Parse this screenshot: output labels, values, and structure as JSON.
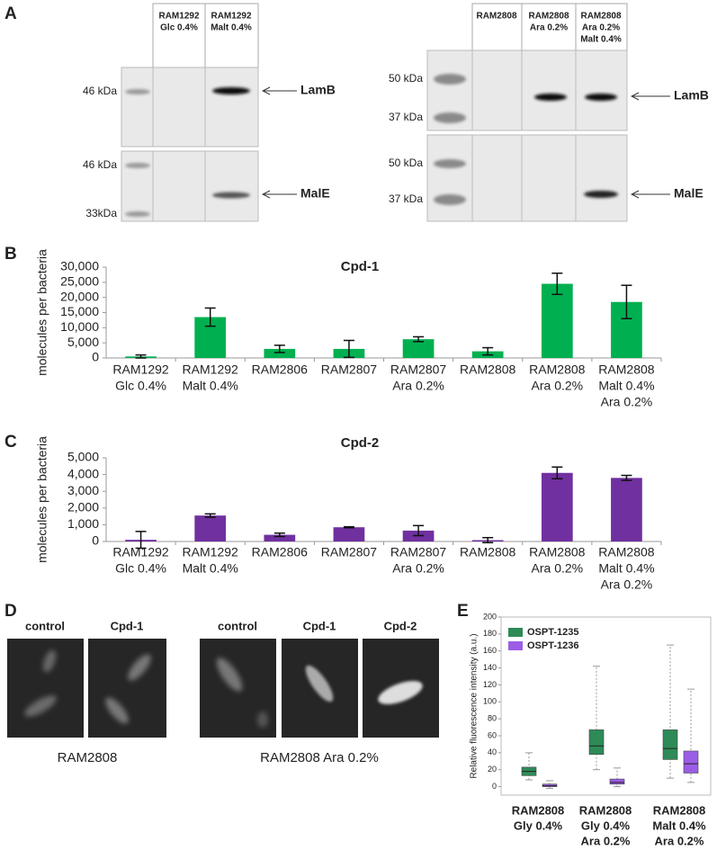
{
  "panel_labels": [
    "A",
    "B",
    "C",
    "D",
    "E"
  ],
  "blot_left": {
    "lanes": [
      [
        "RAM1292",
        "Glc 0.4%"
      ],
      [
        "RAM1292",
        "Malt 0.4%"
      ]
    ],
    "markers": [
      "46 kDa",
      "46 kDa",
      "33kDa"
    ],
    "arrows": [
      "LamB",
      "MalE"
    ]
  },
  "blot_right": {
    "lanes": [
      [
        "RAM2808"
      ],
      [
        "RAM2808",
        "Ara 0.2%"
      ],
      [
        "RAM2808",
        "Ara 0.2%",
        "Malt 0.4%"
      ]
    ],
    "markers": [
      "50 kDa",
      "37 kDa",
      "50 kDa",
      "37 kDa"
    ],
    "arrows": [
      "LamB",
      "MalE"
    ]
  },
  "images": {
    "groups": [
      {
        "caption": "RAM2808",
        "labels": [
          "control",
          "Cpd-1"
        ]
      },
      {
        "caption": "RAM2808 Ara 0.2%",
        "labels": [
          "control",
          "Cpd-1",
          "Cpd-2"
        ]
      }
    ]
  },
  "chart_data": [
    {
      "type": "bar",
      "title": "Cpd-1",
      "y_label": "molecules per bacteria",
      "color": "#00b050",
      "categories": [
        [
          "RAM1292",
          "Glc 0.4%"
        ],
        [
          "RAM1292",
          "Malt 0.4%"
        ],
        [
          "RAM2806"
        ],
        [
          "RAM2807"
        ],
        [
          "RAM2807",
          "Ara 0.2%"
        ],
        [
          "RAM2808"
        ],
        [
          "RAM2808",
          "Ara 0.2%"
        ],
        [
          "RAM2808",
          "Malt 0.4%",
          "Ara 0.2%"
        ]
      ],
      "values": [
        500,
        13500,
        3000,
        3000,
        6200,
        2200,
        24500,
        18500
      ],
      "errors": [
        500,
        3000,
        1200,
        2800,
        800,
        1200,
        3500,
        5500
      ],
      "ylim": [
        0,
        30000
      ],
      "yticks": [
        0,
        {
          "value": 5000,
          "label": "5,000"
        },
        {
          "value": 10000,
          "label": "10,000"
        },
        {
          "value": 15000,
          "label": "15,000"
        },
        {
          "value": 20000,
          "label": "20,000"
        },
        {
          "value": 25000,
          "label": "25,000"
        },
        {
          "value": 30000,
          "label": "30,000"
        }
      ]
    },
    {
      "type": "bar",
      "title": "Cpd-2",
      "y_label": "molecules per bacteria",
      "color": "#7030a0",
      "categories": [
        [
          "RAM1292",
          "Glc 0.4%"
        ],
        [
          "RAM1292",
          "Malt 0.4%"
        ],
        [
          "RAM2806"
        ],
        [
          "RAM2807"
        ],
        [
          "RAM2807",
          "Ara 0.2%"
        ],
        [
          "RAM2808"
        ],
        [
          "RAM2808",
          "Ara 0.2%"
        ],
        [
          "RAM2808",
          "Malt 0.4%",
          "Ara 0.2%"
        ]
      ],
      "values": [
        100,
        1550,
        400,
        850,
        650,
        80,
        4100,
        3800
      ],
      "errors": [
        500,
        100,
        100,
        30,
        300,
        150,
        350,
        150
      ],
      "ylim": [
        0,
        5000
      ],
      "yticks": [
        0,
        {
          "value": 1000,
          "label": "1,000"
        },
        {
          "value": 2000,
          "label": "2,000"
        },
        {
          "value": 3000,
          "label": "3,000"
        },
        {
          "value": 4000,
          "label": "4,000"
        },
        {
          "value": 5000,
          "label": "5,000"
        }
      ]
    },
    {
      "type": "box",
      "y_label": "Relative fluorescence intensity (a.u.)",
      "legend": "upper-left",
      "categories": [
        [
          "RAM2808",
          "Gly 0.4%"
        ],
        [
          "RAM2808",
          "Gly 0.4%",
          "Ara 0.2%"
        ],
        [
          "RAM2808",
          "Malt 0.4%",
          "Ara 0.2%"
        ]
      ],
      "series": [
        {
          "name": "OSPT-1235",
          "color": "#2e8b57",
          "values": [
            {
              "min": 8,
              "q1": 13,
              "median": 18,
              "q3": 23,
              "max": 40
            },
            {
              "min": 20,
              "q1": 38,
              "median": 48,
              "q3": 67,
              "max": 142
            },
            {
              "min": 10,
              "q1": 32,
              "median": 45,
              "q3": 67,
              "max": 167
            }
          ]
        },
        {
          "name": "OSPT-1236",
          "color": "#9b5de5",
          "values": [
            {
              "min": -2,
              "q1": 0,
              "median": 1,
              "q3": 3,
              "max": 7
            },
            {
              "min": 0,
              "q1": 3,
              "median": 5,
              "q3": 9,
              "max": 22
            },
            {
              "min": 5,
              "q1": 16,
              "median": 27,
              "q3": 42,
              "max": 115
            }
          ]
        }
      ],
      "ylim": [
        -10,
        200
      ],
      "yticks": [
        0,
        20,
        40,
        60,
        80,
        100,
        120,
        140,
        160,
        180,
        200
      ]
    }
  ]
}
